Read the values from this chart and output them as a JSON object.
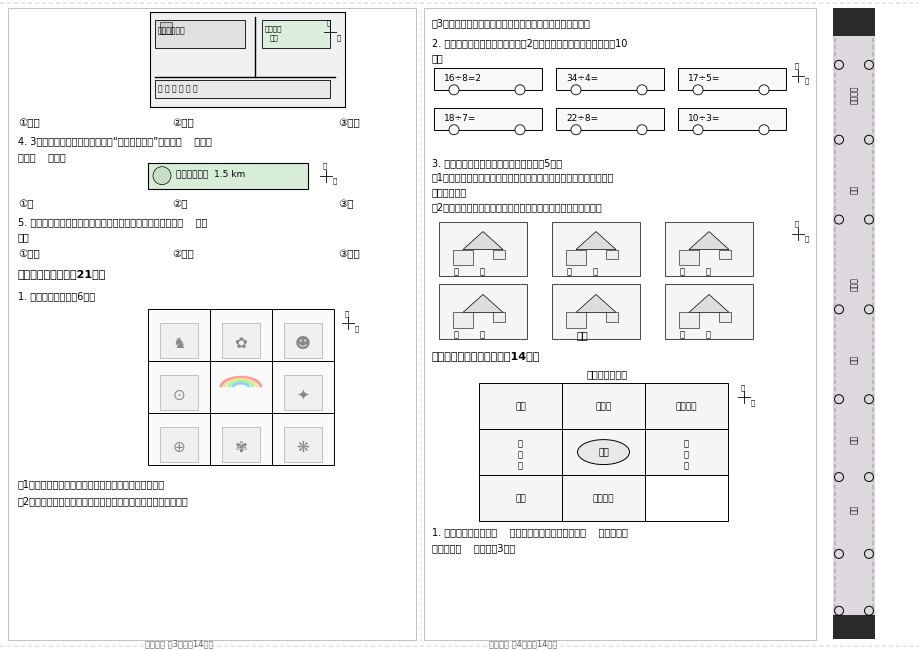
{
  "bg_color": "#ffffff",
  "page_width": 9.2,
  "page_height": 6.51,
  "q3_options_left": [
    "①西北",
    "②东北",
    "③西南"
  ],
  "q4_text": "4. 3个小朋友来到路牌下，他们去“第一人民医院”应先向（    ）走，",
  "q4_text2": "再向（    ）走。",
  "q4_options": [
    "①西",
    "②北",
    "③东"
  ],
  "q5_text": "5. 小红从家先向南走，再向西走就到书城，小红家在书城的（    ）方",
  "q5_text2": "向。",
  "q5_options": [
    "①西南",
    "②西北",
    "③东北"
  ],
  "section3_title": "三、动手操作。（共21分）",
  "q1_paint": "1. 按要求涂一涂。（6分）",
  "paint_notes": [
    "（1）彩虹北面的小动物涂橙色，东面的小动物涂绿色。",
    "（2）彩虹东北方向的小动物涂黄色，西南方向的小动物涂蓝色。"
  ],
  "page_footer_left": "数学试题 第3页（共14页）",
  "q3_paint_note": "（3）彩虹西北方向的小动物涂红色，西面的小动物涂紫色。",
  "q2_title": "2. 照样子算一算，标一标，余数是2的向西走，其余的向东北走。（10",
  "q2_title2": "分）",
  "division_problems": [
    "16÷8=2",
    "34÷4=",
    "17÷5=",
    "18÷7=",
    "22÷8=",
    "10÷3="
  ],
  "q3_title": "3. 请你帮这几个小朋友找到各自的家。（5分）",
  "q3_note1": "（1）芳芳家在学校的东北方向，冬冬家在学校的北面，玲玲家在学校",
  "q3_note2": "的西北方向。",
  "q3_note3": "（2）冬冬家的西南方向是华华家，冬冬家的东南方向是丁丁家。",
  "section4_title": "四、填一填，画一画。（共14分）",
  "school_map_title": "学校平面示意图",
  "q4_note": "1. 学校大门在操场的（    ）面。教学楼在学校大门的（    ）面，在多",
  "q4_note2": "功能厅的（    ）面。（3分）",
  "page_footer_right": "数学试题 第4页（共14页）",
  "spine_items": [
    "准考证号",
    "考场",
    "座位号",
    "姓名",
    "班级",
    "学校"
  ],
  "spine_y_positions": [
    95,
    190,
    285,
    360,
    440,
    510
  ]
}
